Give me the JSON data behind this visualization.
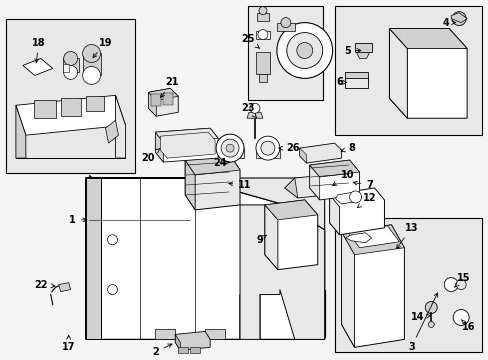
{
  "bg": "#ffffff",
  "fig_bg": "#f5f5f5",
  "lc": "#111111",
  "fill_light": "#e8e8e8",
  "fill_mid": "#d0d0d0",
  "fill_dark": "#b8b8b8",
  "lw": 0.7,
  "fs": 7.0,
  "figsize": [
    4.89,
    3.6
  ],
  "dpi": 100
}
